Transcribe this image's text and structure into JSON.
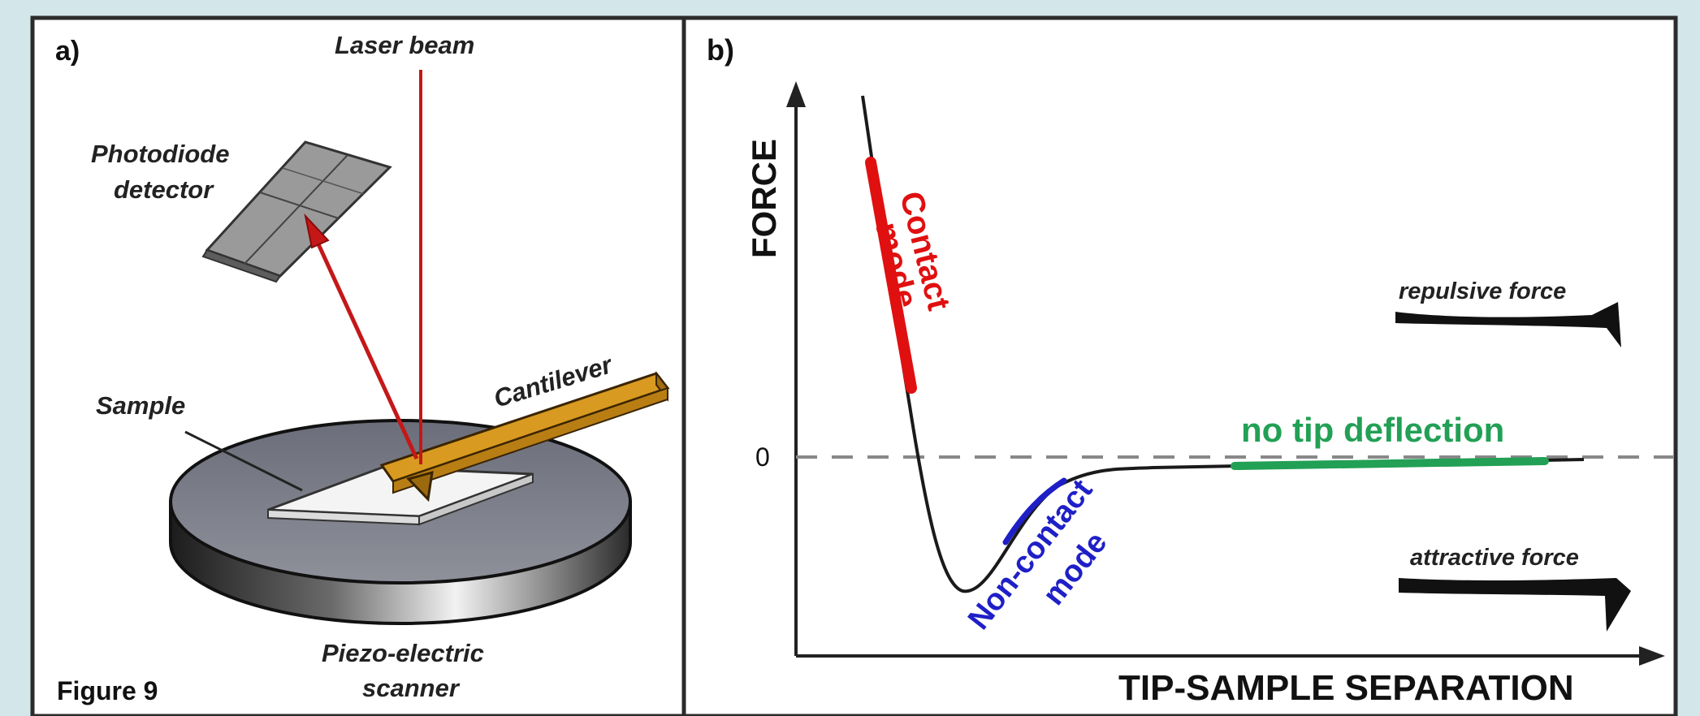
{
  "panel_a": {
    "tag": "a)",
    "laser_label": "Laser beam",
    "detector_label_1": "Photodiode",
    "detector_label_2": "detector",
    "cantilever_label": "Cantilever",
    "sample_label": "Sample",
    "scanner_label_1": "Piezo-electric",
    "scanner_label_2": "scanner",
    "figure_caption": "Figure 9"
  },
  "panel_b": {
    "tag": "b)",
    "y_axis_label": "FORCE",
    "x_axis_label": "TIP-SAMPLE SEPARATION",
    "zero_label": "0",
    "contact_label_1": "Contact",
    "contact_label_2": "mode",
    "noncontact_label_1": "Non-contact",
    "noncontact_label_2": "mode",
    "nodeflection_label": "no tip deflection",
    "repulsive_label": "repulsive force",
    "attractive_label": "attractive force"
  },
  "colors": {
    "contact": "#e01010",
    "noncontact": "#1f1fc8",
    "nodeflection": "#22a055",
    "laser": "#c41818",
    "cantilever": "#d89a20",
    "background": "#d3e6ea"
  }
}
